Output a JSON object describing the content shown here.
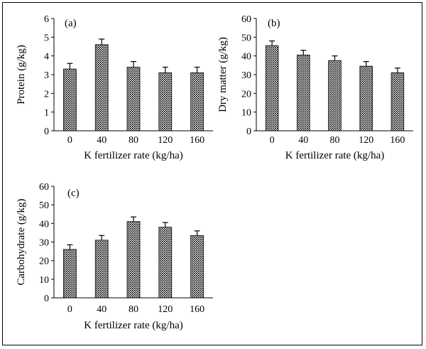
{
  "chart_data": [
    {
      "type": "bar",
      "panel_label": "(a)",
      "categories": [
        "0",
        "40",
        "80",
        "120",
        "160"
      ],
      "values": [
        3.3,
        4.6,
        3.4,
        3.1,
        3.1
      ],
      "errors": [
        0.3,
        0.3,
        0.3,
        0.3,
        0.3
      ],
      "xlabel": "K fertilizer rate (kg/ha)",
      "ylabel": "Protein (g/kg)",
      "ylim": [
        0,
        6
      ],
      "yticks": [
        "0",
        "1",
        "2",
        "3",
        "4",
        "5",
        "6"
      ],
      "grid": false,
      "bar_fill": "dotted-black"
    },
    {
      "type": "bar",
      "panel_label": "(b)",
      "categories": [
        "0",
        "40",
        "80",
        "120",
        "160"
      ],
      "values": [
        45.5,
        40.5,
        37.5,
        34.5,
        31.0
      ],
      "errors": [
        2.5,
        2.5,
        2.5,
        2.5,
        2.5
      ],
      "xlabel": "K fertilizer rate (kg/ha)",
      "ylabel": "Dry matter (g/kg)",
      "ylim": [
        0,
        60
      ],
      "yticks": [
        "0",
        "10",
        "20",
        "30",
        "40",
        "50",
        "60"
      ],
      "grid": false,
      "bar_fill": "dotted-black"
    },
    {
      "type": "bar",
      "panel_label": "(c)",
      "categories": [
        "0",
        "40",
        "80",
        "120",
        "160"
      ],
      "values": [
        26.0,
        31.0,
        41.0,
        38.0,
        33.5
      ],
      "errors": [
        2.5,
        2.5,
        2.5,
        2.5,
        2.5
      ],
      "xlabel": "K fertilizer rate (kg/ha)",
      "ylabel": "Carbohydrate (g/kg)",
      "ylim": [
        0,
        60
      ],
      "yticks": [
        "0",
        "10",
        "20",
        "30",
        "40",
        "50",
        "60"
      ],
      "grid": false,
      "bar_fill": "dotted-black"
    }
  ]
}
